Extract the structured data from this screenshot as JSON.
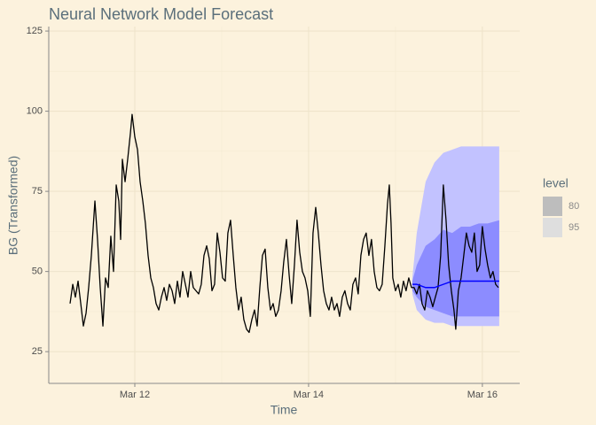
{
  "chart_data": {
    "type": "forecast",
    "title": "Neural Network Model Forecast",
    "x_label": "Time",
    "y_label": "BG (Transformed)",
    "xlim": [
      11.01,
      16.43
    ],
    "ylim": [
      15.1,
      126.4
    ],
    "xticks": [
      {
        "value": 12,
        "label": "Mar 12"
      },
      {
        "value": 14,
        "label": "Mar 14"
      },
      {
        "value": 16,
        "label": "Mar 16"
      }
    ],
    "x_minor_ticks": [
      11,
      13,
      15
    ],
    "yticks": [
      25,
      50,
      75,
      100,
      125
    ],
    "y_minor_ticks": [
      37.5,
      62.5,
      87.5,
      112.5
    ],
    "grid": true,
    "observed": {
      "color": "#000000",
      "x": [
        11.255,
        11.286,
        11.316,
        11.347,
        11.378,
        11.408,
        11.439,
        11.469,
        11.5,
        11.541,
        11.571,
        11.602,
        11.633,
        11.663,
        11.694,
        11.724,
        11.755,
        11.786,
        11.816,
        11.837,
        11.857,
        11.888,
        11.918,
        11.949,
        11.969,
        12.0,
        12.031,
        12.061,
        12.092,
        12.122,
        12.153,
        12.184,
        12.214,
        12.245,
        12.276,
        12.306,
        12.337,
        12.367,
        12.398,
        12.429,
        12.459,
        12.49,
        12.52,
        12.551,
        12.582,
        12.612,
        12.643,
        12.673,
        12.704,
        12.735,
        12.765,
        12.796,
        12.827,
        12.857,
        12.888,
        12.918,
        12.949,
        12.98,
        13.01,
        13.041,
        13.071,
        13.102,
        13.133,
        13.163,
        13.194,
        13.224,
        13.255,
        13.286,
        13.316,
        13.347,
        13.378,
        13.408,
        13.439,
        13.469,
        13.5,
        13.531,
        13.561,
        13.592,
        13.622,
        13.653,
        13.684,
        13.714,
        13.745,
        13.776,
        13.806,
        13.837,
        13.867,
        13.898,
        13.929,
        13.959,
        13.99,
        14.02,
        14.051,
        14.082,
        14.112,
        14.143,
        14.173,
        14.204,
        14.235,
        14.265,
        14.296,
        14.327,
        14.357,
        14.388,
        14.418,
        14.449,
        14.48,
        14.51,
        14.541,
        14.571,
        14.602,
        14.633,
        14.663,
        14.694,
        14.724,
        14.755,
        14.786,
        14.816,
        14.847,
        14.878,
        14.908,
        14.929,
        14.949,
        14.969,
        15.0,
        15.031,
        15.061,
        15.092,
        15.122,
        15.153,
        15.184,
        15.214,
        15.245,
        15.276,
        15.306,
        15.337,
        15.367,
        15.398,
        15.429,
        15.459,
        15.49,
        15.52,
        15.551,
        15.582,
        15.612,
        15.643,
        15.673,
        15.694,
        15.724,
        15.755,
        15.786,
        15.816,
        15.847,
        15.878,
        15.908,
        15.939,
        15.969,
        16.0,
        16.031,
        16.061,
        16.092,
        16.122,
        16.153,
        16.184
      ],
      "values": [
        40,
        46,
        42,
        47,
        40,
        33,
        37,
        45,
        55,
        72,
        60,
        45,
        33,
        48,
        45,
        61,
        50,
        77,
        72,
        60,
        85,
        78,
        85,
        93,
        99,
        92,
        88,
        78,
        72,
        65,
        55,
        48,
        45,
        40,
        38,
        42,
        45,
        41,
        46,
        44,
        40,
        47,
        42,
        50,
        46,
        42,
        50,
        45,
        44,
        43,
        46,
        55,
        58,
        54,
        44,
        46,
        62,
        56,
        48,
        47,
        62,
        66,
        55,
        45,
        38,
        42,
        35,
        32,
        31,
        35,
        38,
        33,
        45,
        55,
        57,
        45,
        38,
        40,
        36,
        38,
        44,
        53,
        60,
        49,
        40,
        52,
        66,
        56,
        50,
        48,
        44,
        36,
        62,
        70,
        62,
        52,
        44,
        40,
        38,
        42,
        38,
        40,
        36,
        42,
        44,
        40,
        38,
        46,
        48,
        43,
        55,
        60,
        62,
        55,
        60,
        50,
        45,
        44,
        46,
        58,
        71,
        77,
        65,
        48,
        44,
        46,
        42,
        47,
        44,
        48,
        45,
        45,
        43,
        46,
        40,
        38,
        44,
        42,
        39,
        42,
        45,
        55,
        77,
        66,
        52,
        44,
        38,
        32,
        44,
        48,
        55,
        62,
        58,
        56,
        62,
        50,
        52,
        64,
        57,
        52,
        48,
        50,
        46,
        45
      ]
    },
    "forecast": {
      "x": [
        15.194,
        15.245,
        15.347,
        15.449,
        15.551,
        15.653,
        15.755,
        15.857,
        15.959,
        16.061,
        16.194
      ],
      "mean": {
        "color": "#0000ff",
        "values": [
          46,
          46,
          45,
          45,
          46,
          47,
          47,
          47,
          47,
          47,
          47
        ]
      },
      "legend_title": "level",
      "bands": [
        {
          "name": "80",
          "color": "#8c8cff",
          "legend_color": "#bdbdbd",
          "lower": [
            44,
            42,
            39,
            38,
            37,
            36,
            36,
            36,
            36,
            36,
            36
          ],
          "upper": [
            47,
            52,
            58,
            60,
            63,
            62,
            64,
            64,
            65,
            65,
            66
          ]
        },
        {
          "name": "95",
          "color": "#c2c2ff",
          "legend_color": "#dedede",
          "lower": [
            43,
            38,
            35,
            34,
            34,
            33,
            33,
            33,
            33,
            33,
            33
          ],
          "upper": [
            48,
            62,
            78,
            84,
            87,
            88,
            89,
            89,
            89,
            89,
            89
          ]
        }
      ]
    }
  }
}
